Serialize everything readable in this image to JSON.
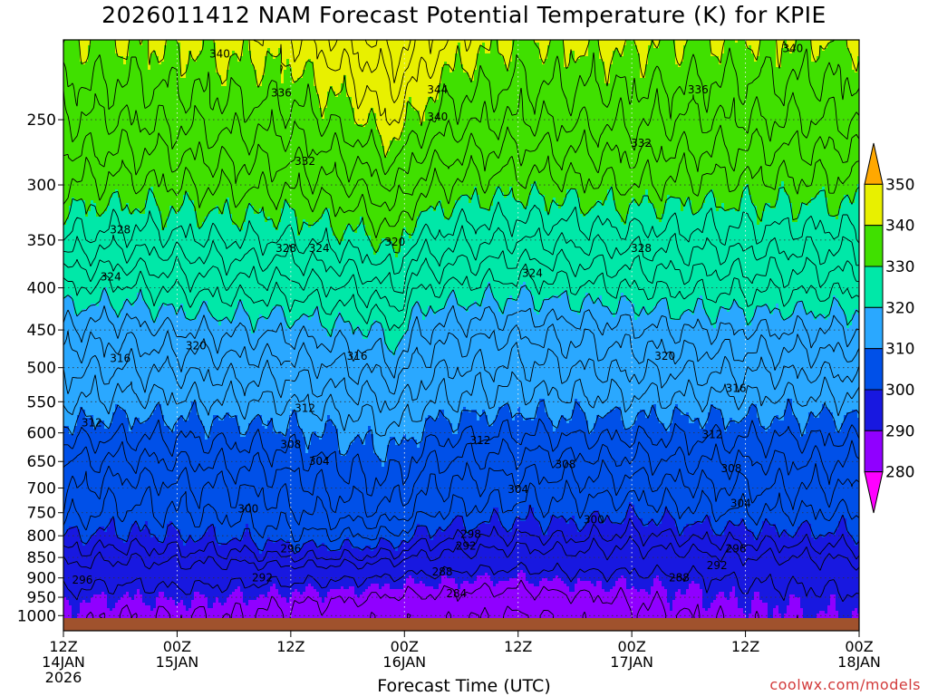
{
  "chart_data": {
    "type": "heatmap",
    "title": "2026011412 NAM Forecast Potential Temperature (K) for KPIE",
    "xlabel": "Forecast Time (UTC)",
    "ylabel": "",
    "credit": "coolwx.com/models",
    "x_ticks": [
      {
        "hour": 0,
        "line1": "12Z",
        "line2": "14JAN",
        "line3": "2026"
      },
      {
        "hour": 12,
        "line1": "00Z",
        "line2": "15JAN",
        "line3": ""
      },
      {
        "hour": 24,
        "line1": "12Z",
        "line2": "",
        "line3": ""
      },
      {
        "hour": 36,
        "line1": "00Z",
        "line2": "16JAN",
        "line3": ""
      },
      {
        "hour": 48,
        "line1": "12Z",
        "line2": "",
        "line3": ""
      },
      {
        "hour": 60,
        "line1": "00Z",
        "line2": "17JAN",
        "line3": ""
      },
      {
        "hour": 72,
        "line1": "12Z",
        "line2": "",
        "line3": ""
      },
      {
        "hour": 84,
        "line1": "00Z",
        "line2": "18JAN",
        "line3": ""
      }
    ],
    "x_range": [
      0,
      84
    ],
    "y_ticks": [
      250,
      300,
      350,
      400,
      450,
      500,
      550,
      600,
      650,
      700,
      750,
      800,
      850,
      900,
      950,
      1000
    ],
    "y_range": [
      200,
      1012
    ],
    "y_scale": "log",
    "y_reversed": true,
    "grid": true,
    "colorbar": {
      "levels": [
        280,
        290,
        300,
        310,
        320,
        330,
        340,
        350
      ],
      "colors": [
        "#ff00ff",
        "#9000ff",
        "#1818e0",
        "#0050e8",
        "#2aa8ff",
        "#00e8a8",
        "#40e000",
        "#e8f000",
        "#ffa800"
      ]
    },
    "contour_values": [
      284,
      288,
      292,
      296,
      298,
      300,
      302,
      304,
      306,
      308,
      310,
      312,
      314,
      316,
      318,
      320,
      322,
      324,
      326,
      328,
      330,
      332,
      334,
      336,
      338,
      340,
      342,
      344,
      346
    ],
    "profile_hours": [
      0,
      6,
      12,
      18,
      24,
      30,
      33,
      35,
      36,
      37,
      39,
      42,
      48,
      54,
      60,
      66,
      72,
      78,
      84
    ],
    "profile_levels": [
      1000,
      950,
      900,
      850,
      800,
      750,
      700,
      650,
      600,
      550,
      500,
      450,
      400,
      350,
      300,
      250,
      200
    ],
    "profiles": [
      [
        289,
        291,
        294,
        297,
        300,
        303,
        304.5,
        306,
        309,
        312,
        314.5,
        317.5,
        322,
        327.5,
        332,
        336,
        340
      ],
      [
        288,
        290,
        293,
        296.5,
        299.5,
        301.5,
        303,
        305.5,
        308.5,
        311.5,
        314,
        317,
        321.5,
        327,
        331.5,
        336,
        340
      ],
      [
        288,
        290.5,
        293.5,
        297,
        300,
        302,
        303.5,
        306,
        308.5,
        311.5,
        314.5,
        318,
        322.5,
        327.5,
        332,
        336.5,
        340.5
      ],
      [
        288,
        290,
        293,
        297,
        300.5,
        302.5,
        304,
        306.5,
        309,
        312,
        315,
        318.5,
        323,
        328,
        332.5,
        337,
        341
      ],
      [
        287,
        289,
        293,
        298,
        301.5,
        303.5,
        305,
        307,
        309.5,
        312,
        315,
        318.5,
        323,
        328,
        332.5,
        337,
        341.5
      ],
      [
        286,
        288.5,
        292.5,
        298,
        302,
        305,
        307,
        308.5,
        310.5,
        313,
        316,
        319.5,
        324,
        329,
        334,
        339,
        344
      ],
      [
        285,
        288,
        292,
        297.5,
        302,
        305.5,
        307.5,
        309,
        311,
        313.5,
        316.5,
        320,
        325,
        330,
        335,
        341,
        346
      ],
      [
        285,
        287.5,
        291.5,
        297,
        301.5,
        305,
        307,
        309,
        311.5,
        314.5,
        317.5,
        321.5,
        326.5,
        331.5,
        336.5,
        342,
        347
      ],
      [
        285,
        287.5,
        291,
        296.5,
        301,
        304.5,
        306.5,
        308.5,
        311,
        314,
        317,
        320.5,
        324.5,
        329,
        335,
        341,
        346.5
      ],
      [
        285,
        287.5,
        291,
        296,
        300,
        303.5,
        305.5,
        307.5,
        310,
        313,
        315.5,
        318.5,
        322.5,
        328,
        333.5,
        339.5,
        345
      ],
      [
        285,
        287.5,
        291,
        295.5,
        299,
        302,
        304,
        306,
        309,
        312,
        314.5,
        317.5,
        322,
        327.5,
        332.5,
        338,
        343
      ],
      [
        284.5,
        287,
        290.5,
        295,
        298.5,
        301.5,
        303.5,
        305.5,
        308.5,
        311.5,
        314,
        317,
        321.5,
        326.5,
        331.5,
        336.5,
        341.5
      ],
      [
        283.5,
        286.5,
        290,
        294.5,
        298,
        301,
        303,
        305,
        308,
        311,
        313.5,
        316.5,
        321,
        326,
        331,
        336,
        340
      ],
      [
        285,
        287.5,
        291,
        295,
        298.5,
        301,
        303,
        305.5,
        308.5,
        311.5,
        314,
        317,
        321.5,
        326.5,
        331.5,
        336.5,
        340.5
      ],
      [
        287,
        288.5,
        291,
        294.5,
        297.5,
        300.5,
        303,
        305.5,
        308.5,
        311.5,
        314.5,
        317.5,
        322,
        327,
        332,
        336.5,
        340.5
      ],
      [
        288,
        289.5,
        291.5,
        295,
        298.5,
        301.5,
        303.5,
        306,
        308.5,
        311.5,
        314.5,
        318,
        322.5,
        327,
        331.5,
        336,
        340
      ],
      [
        289,
        290.5,
        292.5,
        296,
        299,
        302,
        304,
        306,
        308.5,
        311.5,
        314.5,
        318,
        322.5,
        327,
        331.5,
        336,
        340
      ],
      [
        289.5,
        291,
        293,
        296,
        299.5,
        302,
        304,
        306,
        308.5,
        311.5,
        314.5,
        318,
        322.5,
        327,
        331.5,
        336,
        340
      ],
      [
        290,
        291.5,
        293.5,
        296.5,
        299.5,
        302,
        304,
        306,
        308.5,
        311.5,
        314.5,
        318,
        322.5,
        327,
        331.5,
        336,
        340
      ]
    ],
    "contour_labels": [
      {
        "v": "340",
        "hour": 16.5,
        "p": 208
      },
      {
        "v": "340",
        "hour": 77,
        "p": 205
      },
      {
        "v": "344",
        "hour": 39.5,
        "p": 230
      },
      {
        "v": "340",
        "hour": 39.5,
        "p": 248
      },
      {
        "v": "336",
        "hour": 23,
        "p": 232
      },
      {
        "v": "336",
        "hour": 67,
        "p": 230
      },
      {
        "v": "332",
        "hour": 25.5,
        "p": 281
      },
      {
        "v": "332",
        "hour": 61,
        "p": 267
      },
      {
        "v": "328",
        "hour": 6,
        "p": 340
      },
      {
        "v": "328",
        "hour": 23.5,
        "p": 358
      },
      {
        "v": "324",
        "hour": 27,
        "p": 358
      },
      {
        "v": "320",
        "hour": 35,
        "p": 352
      },
      {
        "v": "328",
        "hour": 61,
        "p": 358
      },
      {
        "v": "324",
        "hour": 5,
        "p": 388
      },
      {
        "v": "324",
        "hour": 49.5,
        "p": 384
      },
      {
        "v": "320",
        "hour": 14,
        "p": 470
      },
      {
        "v": "316",
        "hour": 6,
        "p": 487
      },
      {
        "v": "316",
        "hour": 31,
        "p": 484
      },
      {
        "v": "320",
        "hour": 63.5,
        "p": 484
      },
      {
        "v": "316",
        "hour": 71,
        "p": 530
      },
      {
        "v": "312",
        "hour": 25.5,
        "p": 560
      },
      {
        "v": "312",
        "hour": 3,
        "p": 583
      },
      {
        "v": "312",
        "hour": 44,
        "p": 613
      },
      {
        "v": "312",
        "hour": 68.5,
        "p": 603
      },
      {
        "v": "308",
        "hour": 24,
        "p": 620
      },
      {
        "v": "304",
        "hour": 27,
        "p": 650
      },
      {
        "v": "308",
        "hour": 53,
        "p": 655
      },
      {
        "v": "308",
        "hour": 70.5,
        "p": 663
      },
      {
        "v": "304",
        "hour": 48,
        "p": 703
      },
      {
        "v": "304",
        "hour": 71.5,
        "p": 731
      },
      {
        "v": "300",
        "hour": 19.5,
        "p": 742
      },
      {
        "v": "300",
        "hour": 56,
        "p": 765
      },
      {
        "v": "298",
        "hour": 43,
        "p": 797
      },
      {
        "v": "292",
        "hour": 42.5,
        "p": 823
      },
      {
        "v": "296",
        "hour": 24,
        "p": 830
      },
      {
        "v": "296",
        "hour": 71,
        "p": 830
      },
      {
        "v": "292",
        "hour": 69,
        "p": 869
      },
      {
        "v": "296",
        "hour": 2,
        "p": 905
      },
      {
        "v": "292",
        "hour": 21,
        "p": 900
      },
      {
        "v": "288",
        "hour": 40,
        "p": 885
      },
      {
        "v": "288",
        "hour": 65,
        "p": 900
      },
      {
        "v": "284",
        "hour": 41.5,
        "p": 940
      }
    ]
  }
}
